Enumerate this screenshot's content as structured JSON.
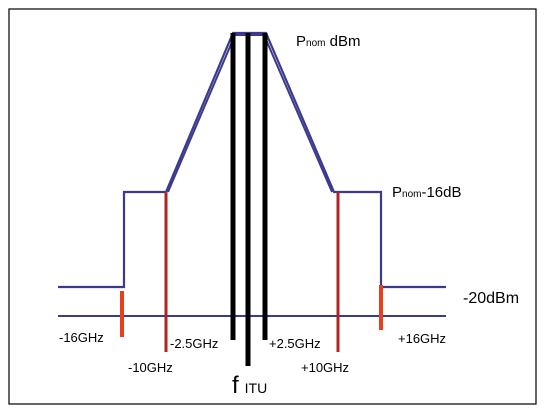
{
  "labels": {
    "nominal_main": "P",
    "nominal_sub": "nom",
    "nominal_unit": " dBm",
    "shoulder_main": "P",
    "shoulder_sub": "nom",
    "shoulder_suffix": "-16dB",
    "floor": "-20dBm",
    "f_main": "f",
    "f_sub": "ITU",
    "minus16": "-16GHz",
    "minus10": "-10GHz",
    "minus2_5": "-2.5GHz",
    "plus2_5": "+2.5GHz",
    "plus10": "+10GHz",
    "plus16": "+16GHz"
  },
  "colors": {
    "mask": "#3b3a8c",
    "red_marker": "#b22222",
    "orange_marker": "#e8401c",
    "center_lines": "#000000",
    "frame": "#000000"
  }
}
